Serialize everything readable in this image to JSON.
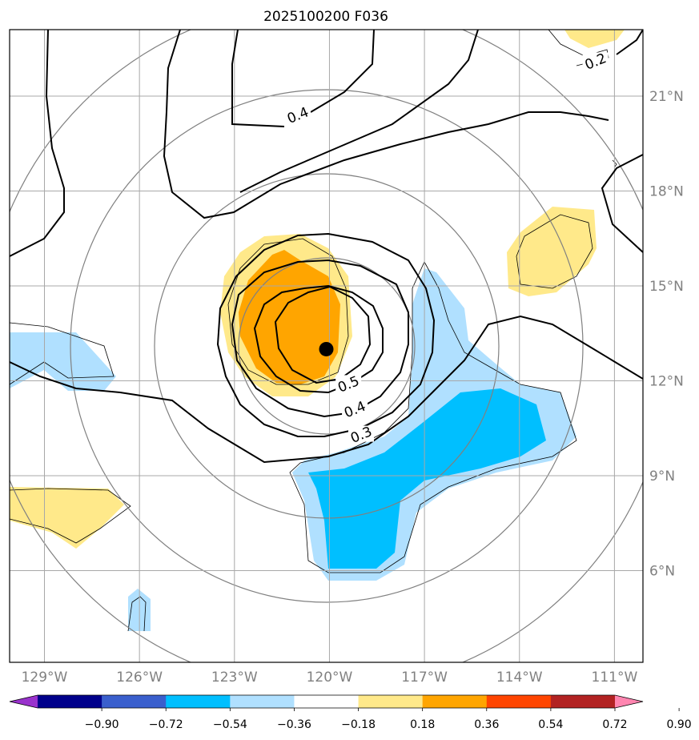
{
  "chart_data": {
    "type": "contour-map",
    "title": "2025100200 F036",
    "x_ticks": [
      {
        "lon": -129,
        "label": "129°W"
      },
      {
        "lon": -126,
        "label": "126°W"
      },
      {
        "lon": -123,
        "label": "123°W"
      },
      {
        "lon": -120,
        "label": "120°W"
      },
      {
        "lon": -117,
        "label": "117°W"
      },
      {
        "lon": -114,
        "label": "114°W"
      },
      {
        "lon": -111,
        "label": "111°W"
      }
    ],
    "y_ticks": [
      {
        "lat": 21,
        "label": "21°N"
      },
      {
        "lat": 18,
        "label": "18°N"
      },
      {
        "lat": 15,
        "label": "15°N"
      },
      {
        "lat": 12,
        "label": "12°N"
      },
      {
        "lat": 9,
        "label": "9°N"
      },
      {
        "lat": 6,
        "label": "6°N"
      }
    ],
    "lon_range": [
      -130.1,
      -110.1
    ],
    "lat_range": [
      3.1,
      23.1
    ],
    "storm_center": {
      "lon": -120.1,
      "lat": 13.0
    },
    "contour_labels": [
      {
        "text": "0.2",
        "lon": -111.6,
        "lat": 22.1
      },
      {
        "text": "0.4",
        "lon": -121.0,
        "lat": 20.4
      },
      {
        "text": "0.5",
        "lon": -119.4,
        "lat": 11.9
      },
      {
        "text": "0.4",
        "lon": -119.2,
        "lat": 11.1
      },
      {
        "text": "0.3",
        "lon": -119.0,
        "lat": 10.3
      }
    ],
    "colorbar": {
      "levels": [
        -0.9,
        -0.72,
        -0.54,
        -0.36,
        -0.18,
        0.18,
        0.36,
        0.54,
        0.72,
        0.9
      ],
      "labels": [
        "−0.90",
        "−0.72",
        "−0.54",
        "−0.36",
        "−0.18",
        "0.18",
        "0.36",
        "0.54",
        "0.72",
        "0.90"
      ],
      "colors": [
        "#9932cc",
        "#00008b",
        "#3a5fcd",
        "#00bfff",
        "#b0e0ff",
        "#ffffff",
        "#ffe98a",
        "#ffa500",
        "#ff4500",
        "#b22222",
        "#ff85b0"
      ],
      "extend": "both"
    }
  }
}
